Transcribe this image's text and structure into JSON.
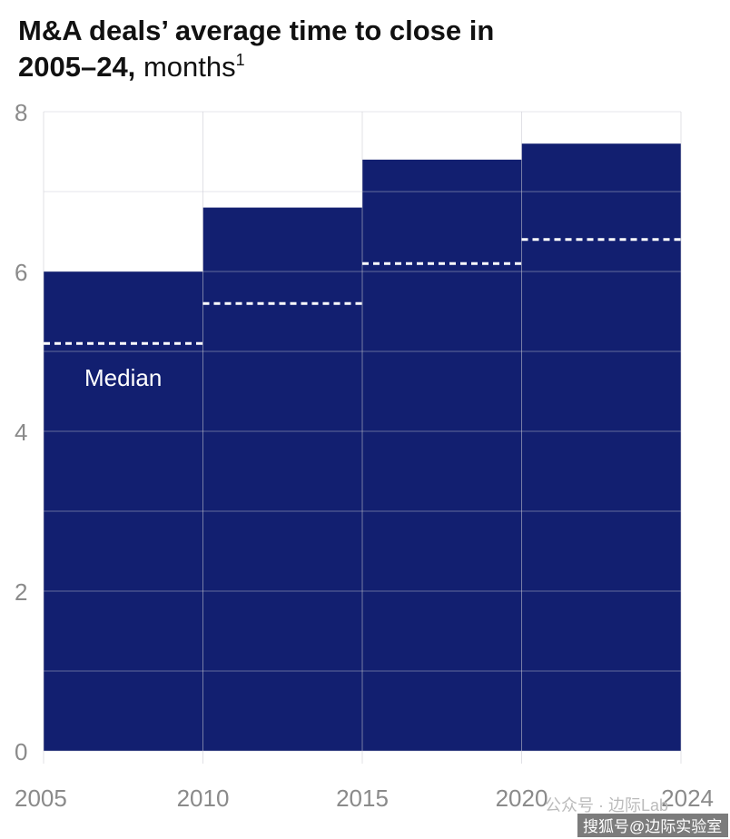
{
  "chart_data": {
    "type": "histogram",
    "title": "M&A deals’ average time to close in",
    "title_bold": "2005–24,",
    "title_rest": "months",
    "title_footnote": "1",
    "bins": [
      2005,
      2010,
      2015,
      2020,
      2024
    ],
    "values": [
      6.0,
      6.8,
      7.4,
      7.6
    ],
    "median_values": [
      5.1,
      5.6,
      6.1,
      6.4
    ],
    "annotation": "Median",
    "color": "#121f70",
    "median_color": "#ffffff",
    "xlim": [
      2005,
      2024
    ],
    "xticks": [
      2005,
      2010,
      2015,
      2020,
      2024
    ],
    "ylim": [
      0,
      8
    ],
    "yticks": [
      0,
      2,
      4,
      6,
      8
    ],
    "minor_yticks": [
      1,
      3,
      5,
      7
    ],
    "grid": true,
    "watermark": "公众号 · 边际Lab",
    "watermark2": "搜狐号@边际实验室"
  }
}
